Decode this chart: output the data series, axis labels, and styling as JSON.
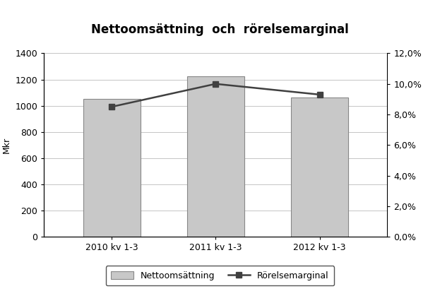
{
  "title": "Nettoomsättning  och  rörelsemarginal",
  "categories": [
    "2010 kv 1-3",
    "2011 kv 1-3",
    "2012 kv 1-3"
  ],
  "bar_values": [
    1050,
    1223.7,
    1064.5
  ],
  "bar_color": "#c8c8c8",
  "bar_edgecolor": "#888888",
  "line_values": [
    0.085,
    0.1,
    0.093
  ],
  "line_color": "#404040",
  "line_marker": "s",
  "line_markersize": 6,
  "line_linewidth": 1.8,
  "ylabel_left": "Mkr",
  "ylim_left": [
    0,
    1400
  ],
  "yticks_left": [
    0,
    200,
    400,
    600,
    800,
    1000,
    1200,
    1400
  ],
  "ylim_right": [
    0,
    0.12
  ],
  "yticks_right": [
    0.0,
    0.02,
    0.04,
    0.06,
    0.08,
    0.1,
    0.12
  ],
  "ytick_labels_right": [
    "0,0%",
    "2,0%",
    "4,0%",
    "6,0%",
    "8,0%",
    "10,0%",
    "12,0%"
  ],
  "legend_bar_label": "Nettoomsättning",
  "legend_line_label": "Rörelsemarginal",
  "background_color": "#ffffff",
  "grid_color": "#bbbbbb",
  "title_fontsize": 12,
  "axis_fontsize": 9,
  "tick_fontsize": 9,
  "bar_width": 0.55
}
